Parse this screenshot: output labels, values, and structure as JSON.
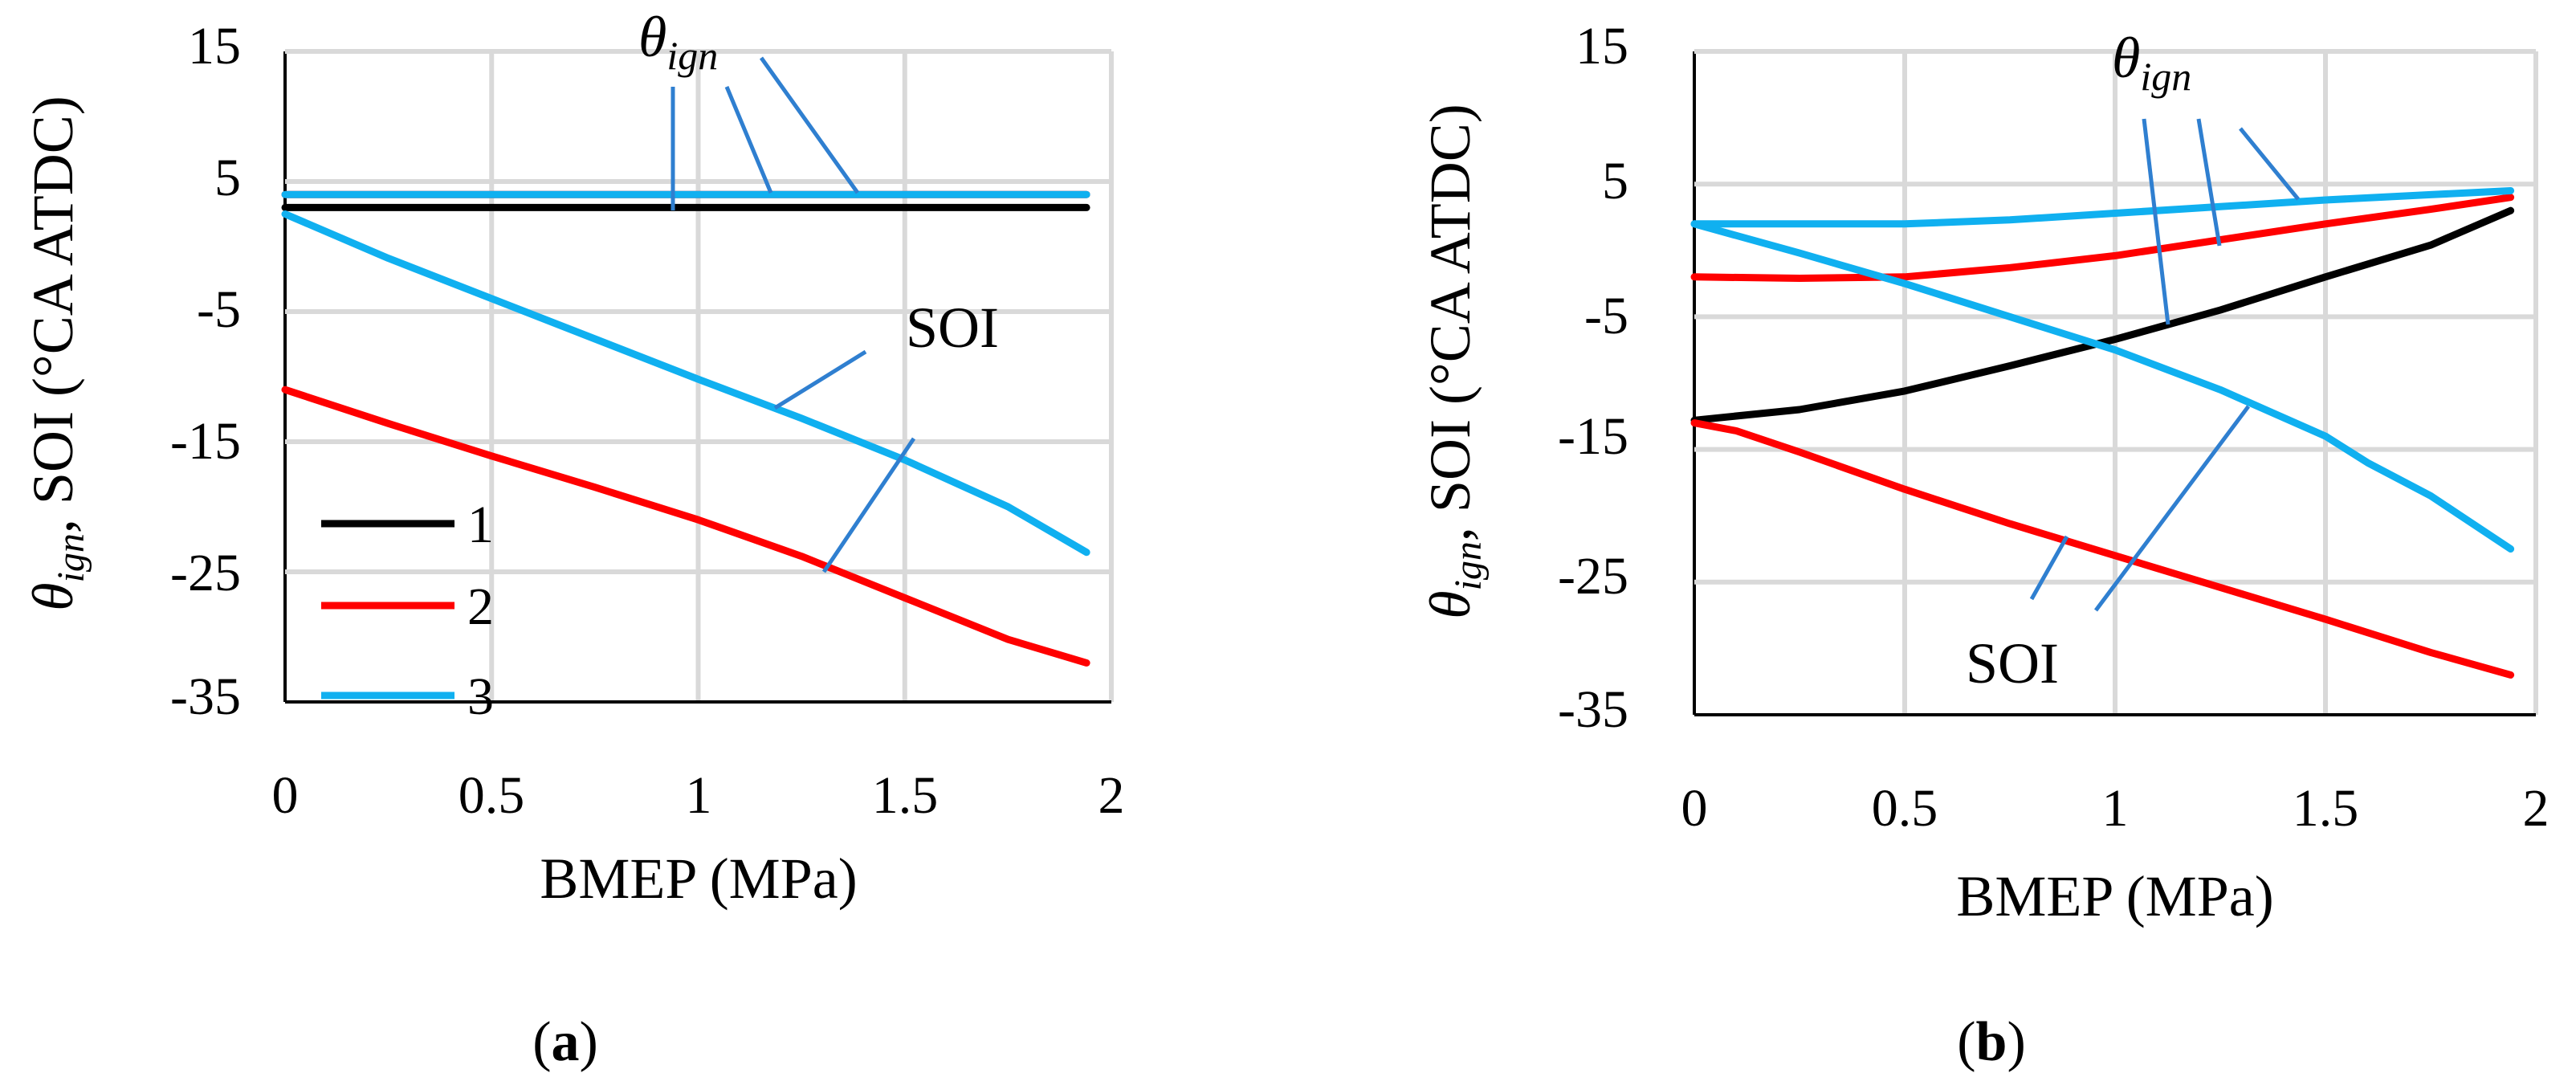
{
  "figure": {
    "panels": [
      "(a)",
      "(b)"
    ]
  },
  "chart_data": [
    {
      "panel": "a",
      "panel_label": {
        "open": "(",
        "letter": "a",
        "close": ")"
      },
      "type": "line",
      "xlabel": "BMEP (MPa)",
      "ylabel": {
        "theta": "θ",
        "sub": "ign",
        "rest": ", SOI (°CA ATDC)"
      },
      "xlim": [
        0,
        2
      ],
      "ylim": [
        -35,
        15
      ],
      "xticks": [
        "0",
        "0.5",
        "1",
        "1.5",
        "2"
      ],
      "yticks": [
        "15",
        "5",
        "-5",
        "-15",
        "-25",
        "-35"
      ],
      "grid": true,
      "legend": {
        "position": "bottom-left",
        "entries": [
          "1",
          "2",
          "3"
        ]
      },
      "series": [
        {
          "name": "1",
          "quantity": "theta_ign",
          "color": "#000000",
          "x": [
            0,
            0.5,
            1,
            1.5,
            1.94
          ],
          "y": [
            3,
            3,
            3,
            3,
            3
          ]
        },
        {
          "name": "2",
          "quantity": "theta_ign",
          "color": "#ff0000",
          "x": [
            0,
            0.5,
            1,
            1.5,
            1.94
          ],
          "y": [
            4,
            4,
            4,
            4,
            4
          ]
        },
        {
          "name": "3",
          "quantity": "theta_ign",
          "color": "#10b0f0",
          "x": [
            0,
            0.5,
            1,
            1.5,
            1.94
          ],
          "y": [
            4,
            4,
            4,
            4,
            4
          ]
        },
        {
          "name": "2",
          "quantity": "SOI",
          "color": "#ff0000",
          "x": [
            0,
            0.25,
            0.5,
            0.75,
            1,
            1.25,
            1.5,
            1.75,
            1.94
          ],
          "y": [
            -11,
            -13.6,
            -16.1,
            -18.5,
            -21,
            -23.8,
            -27,
            -30.2,
            -32
          ]
        },
        {
          "name": "3",
          "quantity": "SOI",
          "color": "#10b0f0",
          "x": [
            0,
            0.25,
            0.5,
            0.75,
            1,
            1.25,
            1.5,
            1.75,
            1.94
          ],
          "y": [
            2.5,
            -0.9,
            -4,
            -7.1,
            -10.2,
            -13.2,
            -16.4,
            -20,
            -23.5
          ]
        }
      ],
      "annotations": [
        {
          "theta": "θ",
          "sub": "ign"
        },
        {
          "text": "SOI"
        }
      ]
    },
    {
      "panel": "b",
      "panel_label": {
        "open": "(",
        "letter": "b",
        "close": ")"
      },
      "type": "line",
      "xlabel": "BMEP (MPa)",
      "ylabel": {
        "theta": "θ",
        "sub": "ign",
        "rest": ", SOI (°CA ATDC)"
      },
      "xlim": [
        0,
        2
      ],
      "ylim": [
        -35,
        15
      ],
      "xticks": [
        "0",
        "0.5",
        "1",
        "1.5",
        "2"
      ],
      "yticks": [
        "15",
        "5",
        "-5",
        "-15",
        "-25",
        "-35"
      ],
      "grid": true,
      "series": [
        {
          "name": "1",
          "quantity": "theta_ign",
          "color": "#000000",
          "x": [
            0,
            0.25,
            0.5,
            0.75,
            1,
            1.25,
            1.5,
            1.75,
            1.94
          ],
          "y": [
            -12.8,
            -12,
            -10.6,
            -8.7,
            -6.7,
            -4.5,
            -2,
            0.4,
            3
          ]
        },
        {
          "name": "2",
          "quantity": "theta_ign",
          "color": "#ff0000",
          "x": [
            0,
            0.25,
            0.5,
            0.75,
            1,
            1.25,
            1.5,
            1.75,
            1.94
          ],
          "y": [
            -2,
            -2.1,
            -2,
            -1.3,
            -0.4,
            0.8,
            2,
            3.1,
            4
          ]
        },
        {
          "name": "3",
          "quantity": "theta_ign",
          "color": "#10b0f0",
          "x": [
            0,
            0.25,
            0.5,
            0.75,
            1,
            1.25,
            1.5,
            1.75,
            1.94
          ],
          "y": [
            2,
            2,
            2,
            2.3,
            2.8,
            3.3,
            3.8,
            4.2,
            4.5
          ]
        },
        {
          "name": "2",
          "quantity": "SOI",
          "color": "#ff0000",
          "x": [
            0,
            0.1,
            0.25,
            0.5,
            0.75,
            1,
            1.25,
            1.5,
            1.75,
            1.94
          ],
          "y": [
            -13,
            -13.6,
            -15.2,
            -18,
            -20.6,
            -23,
            -25.4,
            -27.8,
            -30.3,
            -32
          ]
        },
        {
          "name": "3",
          "quantity": "SOI",
          "color": "#10b0f0",
          "x": [
            0,
            0.25,
            0.5,
            0.75,
            1,
            1.25,
            1.5,
            1.6,
            1.75,
            1.94
          ],
          "y": [
            2,
            -0.2,
            -2.5,
            -5,
            -7.5,
            -10.5,
            -14,
            -16,
            -18.5,
            -22.5
          ]
        }
      ],
      "annotations": [
        {
          "theta": "θ",
          "sub": "ign"
        },
        {
          "text": "SOI"
        }
      ]
    }
  ]
}
